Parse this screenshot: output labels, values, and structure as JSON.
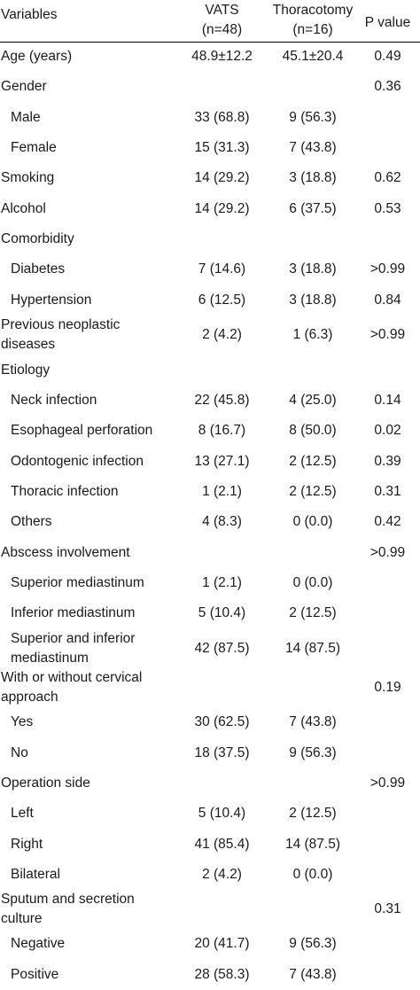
{
  "header": {
    "variables": "Variables",
    "vats": "VATS",
    "vats_n": "(n=48)",
    "thoracotomy": "Thoracotomy",
    "thoracotomy_n": "(n=16)",
    "p_value": "P value"
  },
  "rows": [
    {
      "label": "Age (years)",
      "vats": "48.9±12.2",
      "thor": "45.1±20.4",
      "p": "0.49",
      "sub": false
    },
    {
      "label": "Gender",
      "vats": "",
      "thor": "",
      "p": "0.36",
      "sub": false
    },
    {
      "label": "Male",
      "vats": "33 (68.8)",
      "thor": "9 (56.3)",
      "p": "",
      "sub": true
    },
    {
      "label": "Female",
      "vats": "15 (31.3)",
      "thor": "7 (43.8)",
      "p": "",
      "sub": true
    },
    {
      "label": "Smoking",
      "vats": "14 (29.2)",
      "thor": "3 (18.8)",
      "p": "0.62",
      "sub": false
    },
    {
      "label": "Alcohol",
      "vats": "14 (29.2)",
      "thor": "6 (37.5)",
      "p": "0.53",
      "sub": false
    },
    {
      "label": "Comorbidity",
      "vats": "",
      "thor": "",
      "p": "",
      "sub": false
    },
    {
      "label": "Diabetes",
      "vats": "7 (14.6)",
      "thor": "3 (18.8)",
      "p": ">0.99",
      "sub": true
    },
    {
      "label": "Hypertension",
      "vats": "6 (12.5)",
      "thor": "3 (18.8)",
      "p": "0.84",
      "sub": true
    },
    {
      "label": "Previous neoplastic",
      "label2": "diseases",
      "vats": "2 (4.2)",
      "thor": "1 (6.3)",
      "p": ">0.99",
      "sub": false
    },
    {
      "label": "Etiology",
      "vats": "",
      "thor": "",
      "p": "",
      "sub": false
    },
    {
      "label": "Neck infection",
      "vats": "22 (45.8)",
      "thor": "4 (25.0)",
      "p": "0.14",
      "sub": true
    },
    {
      "label": "Esophageal perforation",
      "vats": "8 (16.7)",
      "thor": "8 (50.0)",
      "p": "0.02",
      "sub": true
    },
    {
      "label": "Odontogenic infection",
      "vats": "13 (27.1)",
      "thor": "2 (12.5)",
      "p": "0.39",
      "sub": true
    },
    {
      "label": "Thoracic infection",
      "vats": "1 (2.1)",
      "thor": "2 (12.5)",
      "p": "0.31",
      "sub": true
    },
    {
      "label": "Others",
      "vats": "4 (8.3)",
      "thor": "0 (0.0)",
      "p": "0.42",
      "sub": true
    },
    {
      "label": "Abscess involvement",
      "vats": "",
      "thor": "",
      "p": ">0.99",
      "sub": false
    },
    {
      "label": "Superior mediastinum",
      "vats": "1 (2.1)",
      "thor": "0 (0.0)",
      "p": "",
      "sub": true
    },
    {
      "label": "Inferior mediastinum",
      "vats": "5 (10.4)",
      "thor": "2 (12.5)",
      "p": "",
      "sub": true
    },
    {
      "label": "Superior and inferior",
      "label2": "mediastinum",
      "vats": "42 (87.5)",
      "thor": "14 (87.5)",
      "p": "",
      "sub": true
    },
    {
      "label": "With or without cervical approach",
      "vats": "",
      "thor": "",
      "p": "0.19",
      "sub": false
    },
    {
      "label": "Yes",
      "vats": "30 (62.5)",
      "thor": "7 (43.8)",
      "p": "",
      "sub": true
    },
    {
      "label": "No",
      "vats": "18 (37.5)",
      "thor": "9 (56.3)",
      "p": "",
      "sub": true
    },
    {
      "label": "Operation side",
      "vats": "",
      "thor": "",
      "p": ">0.99",
      "sub": false
    },
    {
      "label": "Left",
      "vats": "5 (10.4)",
      "thor": "2 (12.5)",
      "p": "",
      "sub": true
    },
    {
      "label": "Right",
      "vats": "41 (85.4)",
      "thor": "14 (87.5)",
      "p": "",
      "sub": true
    },
    {
      "label": "Bilateral",
      "vats": "2 (4.2)",
      "thor": "0 (0.0)",
      "p": "",
      "sub": true
    },
    {
      "label": "Sputum and secretion culture",
      "vats": "",
      "thor": "",
      "p": "0.31",
      "sub": false
    },
    {
      "label": "Negative",
      "vats": "20 (41.7)",
      "thor": "9 (56.3)",
      "p": "",
      "sub": true
    },
    {
      "label": "Positive",
      "vats": "28 (58.3)",
      "thor": "7 (43.8)",
      "p": "",
      "sub": true
    }
  ]
}
